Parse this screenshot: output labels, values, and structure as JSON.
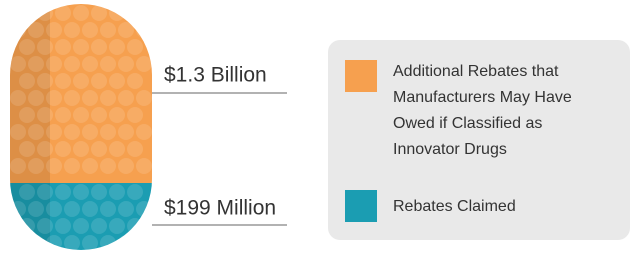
{
  "pill": {
    "segments": [
      {
        "label": "$1.3 Billion",
        "color": "#f6a04f"
      },
      {
        "label": "$199 Million",
        "color": "#1b9db2"
      }
    ]
  },
  "legend": {
    "items": [
      {
        "lines": [
          "Additional Rebates that",
          "Manufacturers May Have",
          "Owed if Classified as",
          "Innovator Drugs"
        ],
        "color": "#f6a04f"
      },
      {
        "lines": [
          "Rebates Claimed"
        ],
        "color": "#1b9db2"
      }
    ]
  }
}
